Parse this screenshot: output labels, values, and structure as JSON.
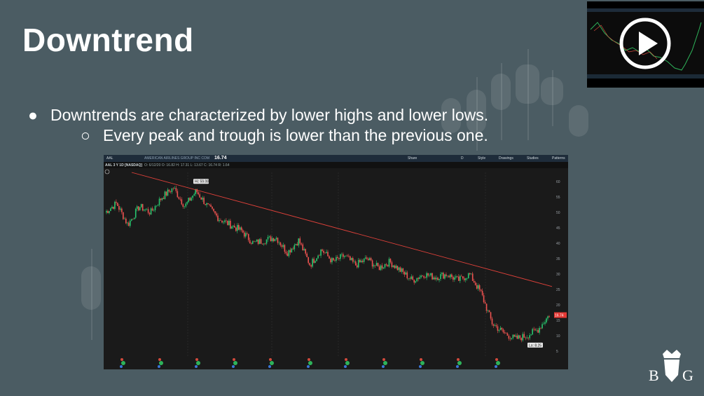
{
  "slide": {
    "title": "Downtrend",
    "bullets": [
      {
        "level": 1,
        "marker": "●",
        "text": "Downtrends are characterized by lower highs and lower lows."
      },
      {
        "level": 2,
        "marker": "○",
        "text": "Every peak and trough is lower than the previous one."
      }
    ]
  },
  "video": {
    "icon": "play-icon"
  },
  "chart_toolbar": {
    "symbol": "AAL",
    "company": "AMERICAN AIRLINES GROUP INC COM",
    "price": "16.74",
    "buttons": [
      "Share",
      "Style",
      "Drawings",
      "Studies",
      "Patterns"
    ],
    "timeframe": "D",
    "study_label": "AAL 3 Y 1D [NASDAQ]",
    "ohlc": "O: 6/12/20  O: 16.82  H: 17.31  L: 13.67  C: 16.74  R: 1.64"
  },
  "chart_data": {
    "type": "candlestick",
    "symbol": "AAL",
    "timeframe": "3 Y 1D",
    "y_ticks": [
      60,
      55,
      50,
      45,
      40,
      35,
      30,
      25,
      20,
      15,
      10,
      5
    ],
    "ylim": [
      3,
      63
    ],
    "high_label": "Hi: 59.08",
    "low_label": "Lo: 8.25",
    "last_price_label": "16.74",
    "series_close_samples": [
      50,
      53,
      46,
      52,
      50,
      55,
      58,
      52,
      57,
      52,
      48,
      46,
      44,
      40,
      41,
      42,
      37,
      41,
      33,
      38,
      34,
      36,
      33,
      35,
      32,
      34,
      31,
      28,
      30,
      29,
      30,
      28,
      30,
      24,
      14,
      11,
      9,
      10,
      12,
      16.74
    ],
    "trendline": {
      "start": [
        0,
        63
      ],
      "end": [
        1,
        26
      ]
    },
    "colors": {
      "up": "#28c76f",
      "down": "#ef5350",
      "trendline": "#e0413a"
    }
  },
  "logo": {
    "text": "BMG"
  }
}
